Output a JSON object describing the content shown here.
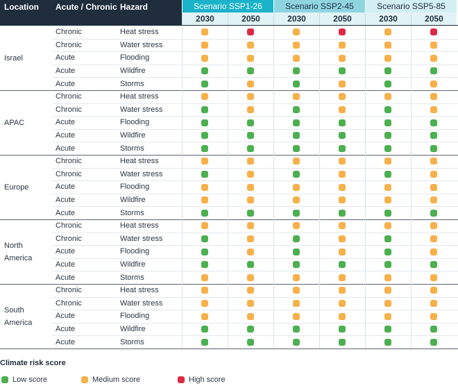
{
  "header": {
    "location": "Location",
    "type": "Acute / Chronic",
    "hazard": "Hazard",
    "scenarios": [
      {
        "name": "Scenario SSP1-26",
        "color": "#1bb3c9",
        "years": [
          "2030",
          "2050"
        ]
      },
      {
        "name": "Scenario SSP2-45",
        "color": "#8fd5df",
        "years": [
          "2030",
          "2050"
        ]
      },
      {
        "name": "Scenario SSP5-85",
        "color": "#d3eff3",
        "years": [
          "2030",
          "2050"
        ]
      }
    ]
  },
  "groups": [
    {
      "location": "Israel",
      "rows": [
        {
          "type": "Chronic",
          "hazard": "Heat stress",
          "scores": [
            2,
            3,
            2,
            3,
            2,
            3
          ]
        },
        {
          "type": "Chronic",
          "hazard": "Water stress",
          "scores": [
            2,
            2,
            2,
            2,
            2,
            2
          ]
        },
        {
          "type": "Acute",
          "hazard": "Flooding",
          "scores": [
            2,
            2,
            2,
            2,
            2,
            2
          ]
        },
        {
          "type": "Acute",
          "hazard": "Wildfire",
          "scores": [
            1,
            1,
            1,
            1,
            1,
            1
          ]
        },
        {
          "type": "Acute",
          "hazard": "Storms",
          "scores": [
            1,
            2,
            1,
            2,
            1,
            2
          ]
        }
      ]
    },
    {
      "location": "APAC",
      "rows": [
        {
          "type": "Chronic",
          "hazard": "Heat stress",
          "scores": [
            2,
            2,
            2,
            2,
            2,
            2
          ]
        },
        {
          "type": "Chronic",
          "hazard": "Water stress",
          "scores": [
            1,
            2,
            1,
            2,
            1,
            2
          ]
        },
        {
          "type": "Acute",
          "hazard": "Flooding",
          "scores": [
            1,
            1,
            1,
            1,
            1,
            1
          ]
        },
        {
          "type": "Acute",
          "hazard": "Wildfire",
          "scores": [
            1,
            1,
            1,
            1,
            1,
            1
          ]
        },
        {
          "type": "Acute",
          "hazard": "Storms",
          "scores": [
            1,
            1,
            1,
            1,
            1,
            1
          ]
        }
      ]
    },
    {
      "location": "Europe",
      "rows": [
        {
          "type": "Chronic",
          "hazard": "Heat stress",
          "scores": [
            2,
            2,
            2,
            2,
            2,
            2
          ]
        },
        {
          "type": "Chronic",
          "hazard": "Water stress",
          "scores": [
            1,
            2,
            1,
            2,
            1,
            2
          ]
        },
        {
          "type": "Acute",
          "hazard": "Flooding",
          "scores": [
            2,
            2,
            2,
            2,
            2,
            2
          ]
        },
        {
          "type": "Acute",
          "hazard": "Wildfire",
          "scores": [
            2,
            2,
            2,
            2,
            2,
            2
          ]
        },
        {
          "type": "Acute",
          "hazard": "Storms",
          "scores": [
            1,
            1,
            1,
            1,
            1,
            1
          ]
        }
      ]
    },
    {
      "location": "North America",
      "rows": [
        {
          "type": "Chronic",
          "hazard": "Heat stress",
          "scores": [
            2,
            2,
            2,
            2,
            2,
            2
          ]
        },
        {
          "type": "Chronic",
          "hazard": "Water stress",
          "scores": [
            1,
            2,
            1,
            2,
            1,
            2
          ]
        },
        {
          "type": "Acute",
          "hazard": "Flooding",
          "scores": [
            1,
            2,
            1,
            2,
            1,
            2
          ]
        },
        {
          "type": "Acute",
          "hazard": "Wildfire",
          "scores": [
            1,
            1,
            1,
            1,
            1,
            1
          ]
        },
        {
          "type": "Acute",
          "hazard": "Storms",
          "scores": [
            2,
            2,
            2,
            2,
            2,
            2
          ]
        }
      ]
    },
    {
      "location": "South America",
      "rows": [
        {
          "type": "Chronic",
          "hazard": "Heat stress",
          "scores": [
            2,
            2,
            2,
            2,
            2,
            2
          ]
        },
        {
          "type": "Chronic",
          "hazard": "Water stress",
          "scores": [
            2,
            2,
            2,
            2,
            2,
            2
          ]
        },
        {
          "type": "Acute",
          "hazard": "Flooding",
          "scores": [
            2,
            2,
            2,
            2,
            2,
            2
          ]
        },
        {
          "type": "Acute",
          "hazard": "Wildfire",
          "scores": [
            1,
            1,
            1,
            1,
            1,
            1
          ]
        },
        {
          "type": "Acute",
          "hazard": "Storms",
          "scores": [
            1,
            1,
            1,
            1,
            1,
            1
          ]
        }
      ]
    }
  ],
  "legend": {
    "title": "Climate risk score",
    "items": [
      {
        "score": 1,
        "label": "Low score",
        "color": "#4caf50"
      },
      {
        "score": 2,
        "label": "Medium score",
        "color": "#f7b04a"
      },
      {
        "score": 3,
        "label": "High score",
        "color": "#dc2a45"
      }
    ]
  }
}
